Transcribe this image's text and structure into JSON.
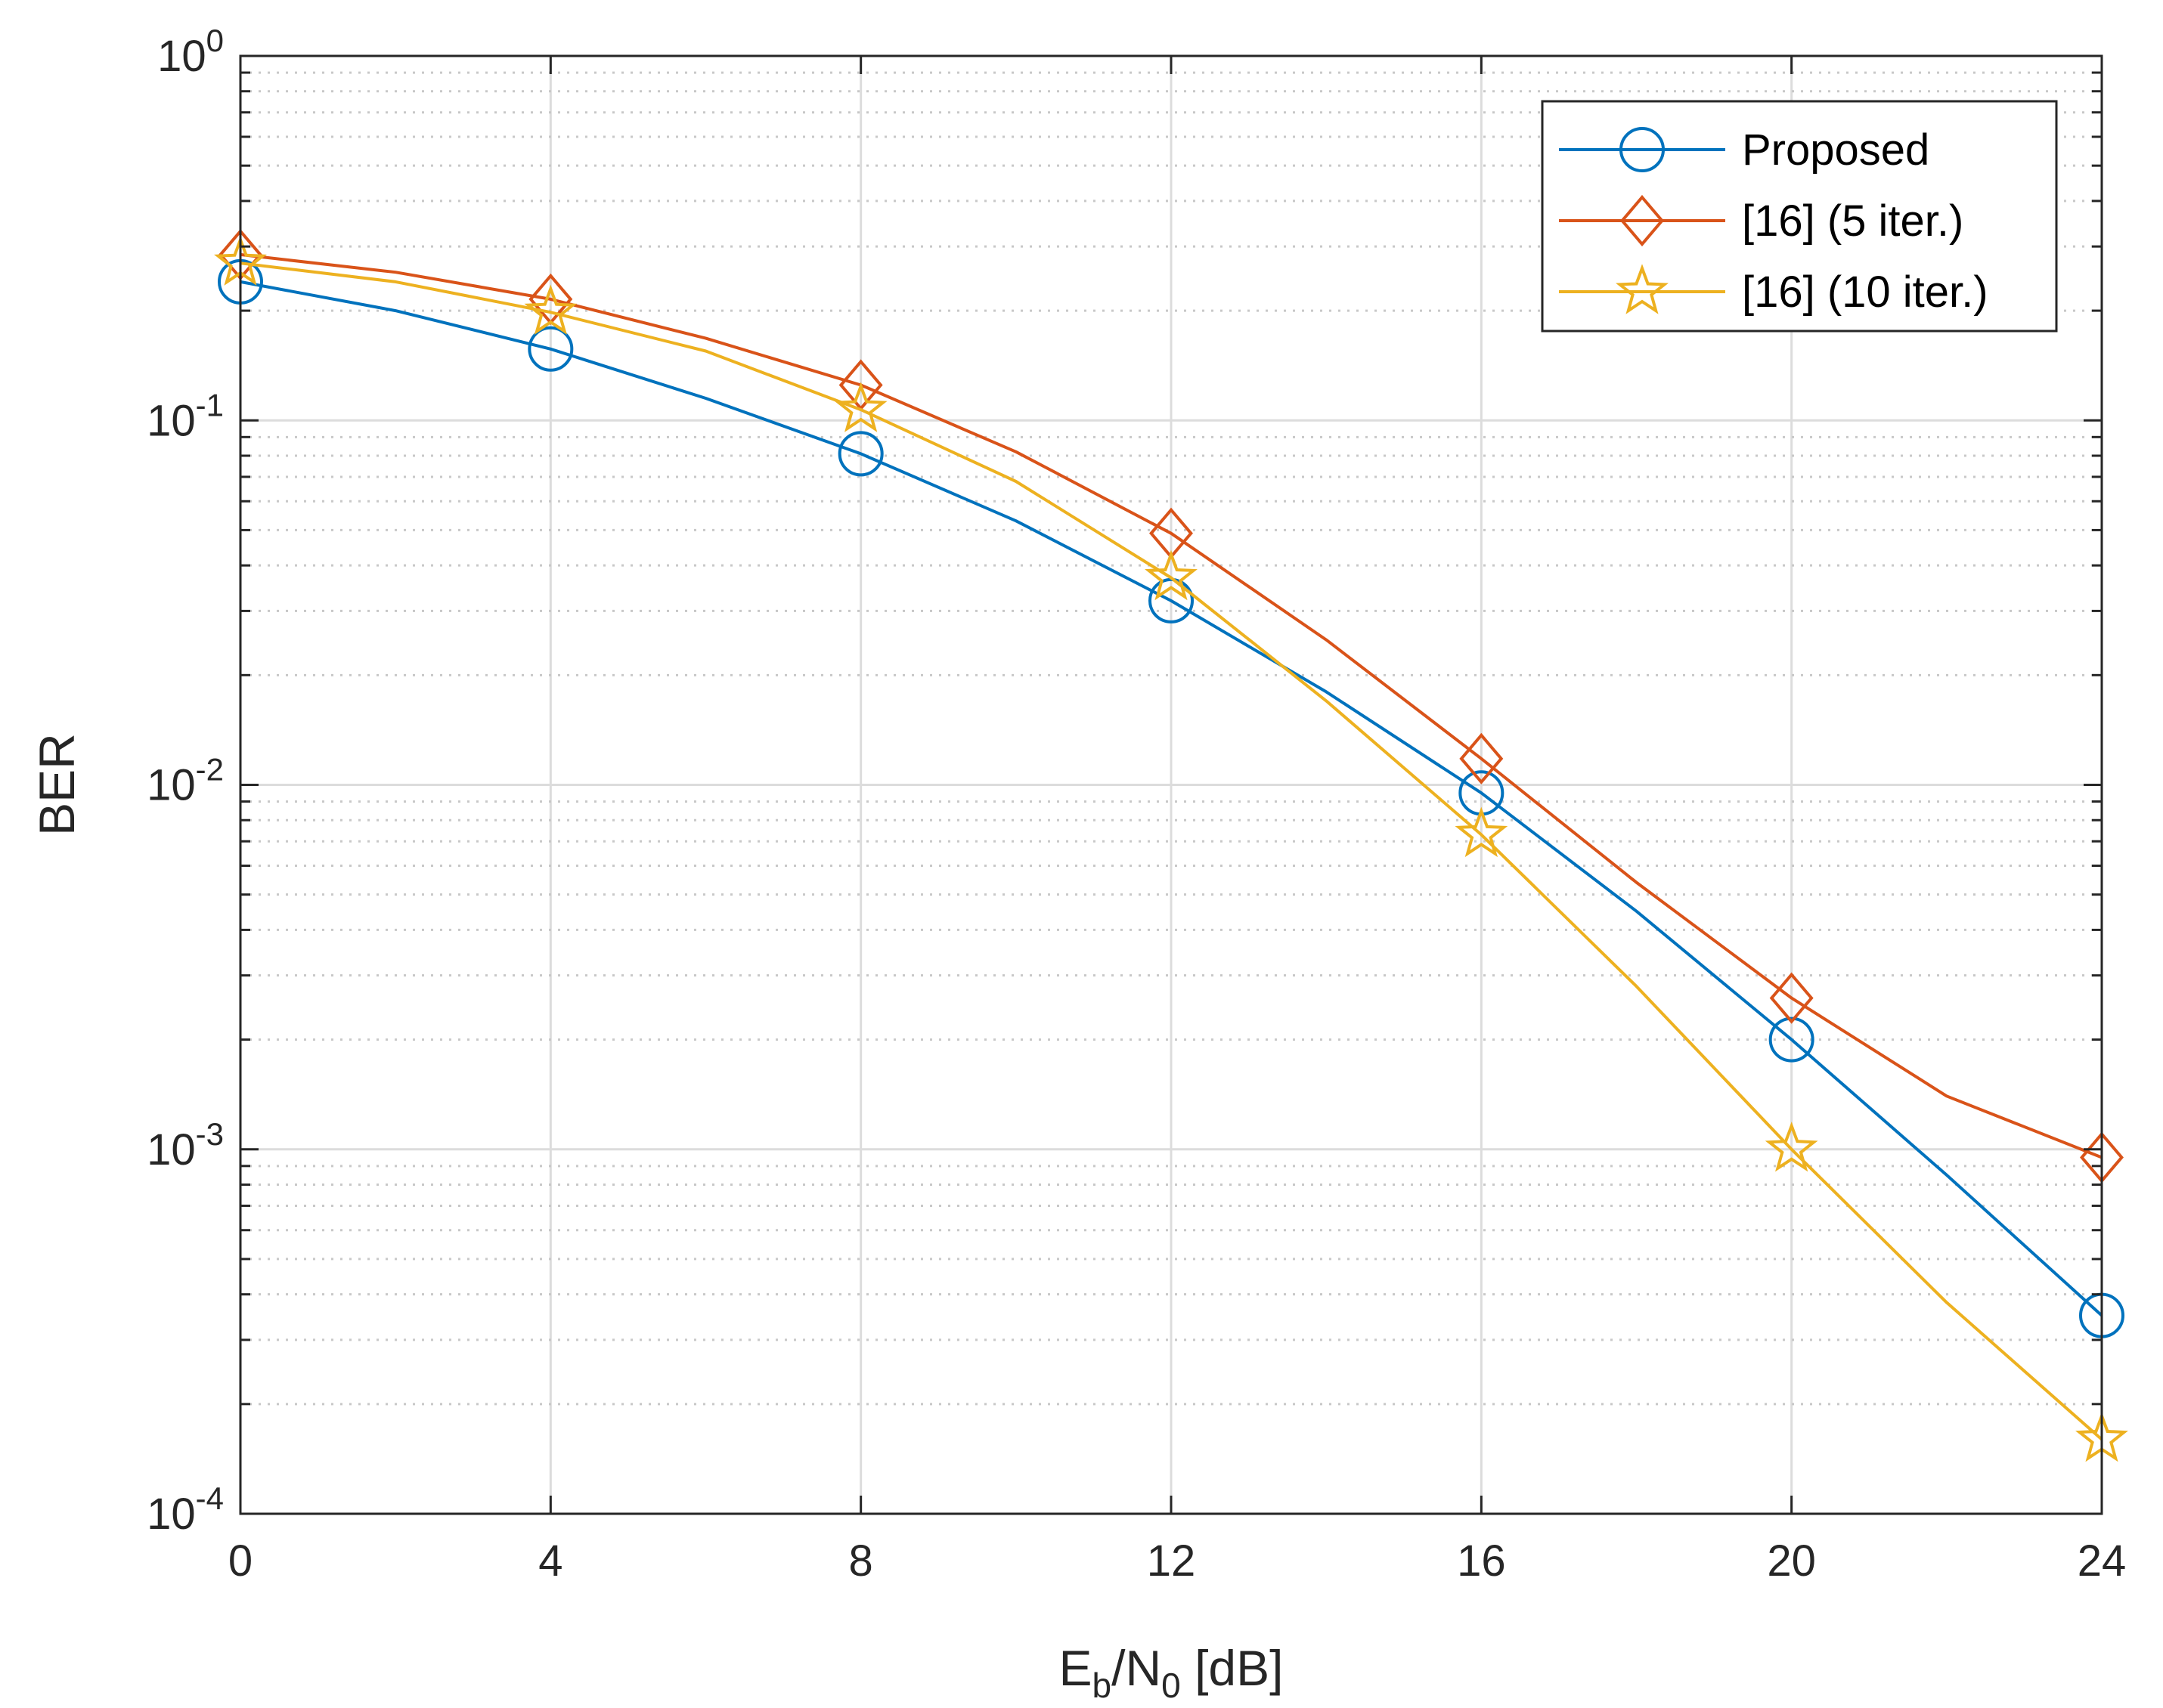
{
  "chart_data": {
    "type": "line",
    "title": "",
    "xlabel": "E_b/N_0 [dB]",
    "xlabel_parts": {
      "main": "E",
      "sub1": "b",
      "mid": "/N",
      "sub2": "0",
      "tail": " [dB]"
    },
    "ylabel": "BER",
    "xlim": [
      0,
      24
    ],
    "ylim": [
      0.0001,
      1
    ],
    "yscale": "log",
    "grid": true,
    "legend_position": "top-right",
    "x_ticks": [
      {
        "value": 0,
        "label": "0"
      },
      {
        "value": 4,
        "label": "4"
      },
      {
        "value": 8,
        "label": "8"
      },
      {
        "value": 12,
        "label": "12"
      },
      {
        "value": 16,
        "label": "16"
      },
      {
        "value": 20,
        "label": "20"
      },
      {
        "value": 24,
        "label": "24"
      }
    ],
    "y_ticks": [
      {
        "value": 1,
        "base": "10",
        "exp": "0"
      },
      {
        "value": 0.1,
        "base": "10",
        "exp": "-1"
      },
      {
        "value": 0.01,
        "base": "10",
        "exp": "-2"
      },
      {
        "value": 0.001,
        "base": "10",
        "exp": "-3"
      },
      {
        "value": 0.0001,
        "base": "10",
        "exp": "-4"
      }
    ],
    "x": [
      0,
      2,
      4,
      6,
      8,
      10,
      12,
      14,
      16,
      18,
      20,
      22,
      24
    ],
    "marker_x": [
      0,
      4,
      8,
      12,
      16,
      20,
      24
    ],
    "series": [
      {
        "name": "Proposed",
        "color": "#0072BD",
        "marker": "circle",
        "values": [
          0.24,
          0.2,
          0.157,
          0.115,
          0.081,
          0.053,
          0.032,
          0.018,
          0.0095,
          0.0045,
          0.002,
          0.00085,
          0.00035
        ]
      },
      {
        "name": "[16] (5 iter.)",
        "color": "#D95319",
        "marker": "diamond",
        "values": [
          0.285,
          0.255,
          0.215,
          0.168,
          0.125,
          0.082,
          0.049,
          0.025,
          0.0118,
          0.0054,
          0.0026,
          0.0014,
          0.00095
        ]
      },
      {
        "name": "[16] (10 iter.)",
        "color": "#EDB120",
        "marker": "star",
        "values": [
          0.27,
          0.24,
          0.198,
          0.155,
          0.107,
          0.068,
          0.037,
          0.017,
          0.0073,
          0.0028,
          0.001,
          0.00038,
          0.00016
        ]
      }
    ]
  }
}
